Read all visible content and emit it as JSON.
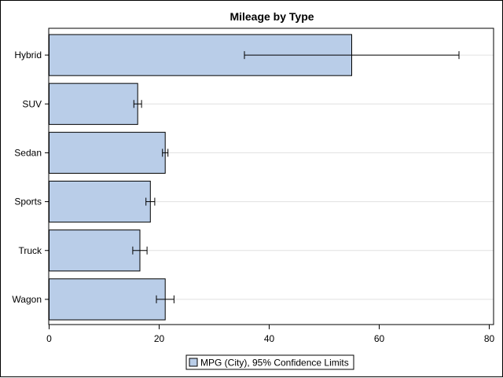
{
  "chart_data": {
    "type": "bar",
    "orientation": "horizontal",
    "title": "Mileage by Type",
    "categories": [
      "Hybrid",
      "SUV",
      "Sedan",
      "Sports",
      "Truck",
      "Wagon"
    ],
    "series": [
      {
        "name": "MPG (City), 95% Confidence Limits",
        "values": [
          55.0,
          16.1,
          21.1,
          18.4,
          16.5,
          21.1
        ],
        "error_low": [
          35.5,
          15.4,
          20.6,
          17.6,
          15.2,
          19.5
        ],
        "error_high": [
          74.5,
          16.8,
          21.6,
          19.2,
          17.8,
          22.7
        ],
        "color": "#b9cde8",
        "edge_color": "#000000"
      }
    ],
    "xlabel": "",
    "ylabel": "",
    "xlim": [
      0,
      80
    ],
    "x_ticks": [
      0,
      20,
      40,
      60,
      80
    ],
    "grid": "horizontal-light",
    "grid_color": "#e0e0e0",
    "legend": "bottom-center"
  }
}
